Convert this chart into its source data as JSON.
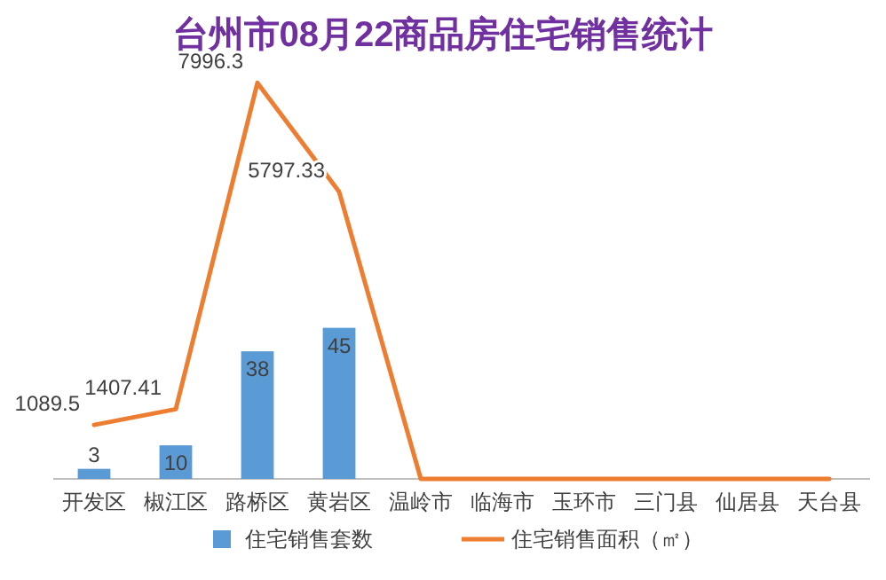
{
  "chart_data": {
    "type": "bar",
    "title": "台州市08月22商品房住宅销售统计",
    "categories": [
      "开发区",
      "椒江区",
      "路桥区",
      "黄岩区",
      "温岭市",
      "临海市",
      "玉环市",
      "三门县",
      "仙居县",
      "天台县"
    ],
    "series": [
      {
        "name": "住宅销售套数",
        "color": "#5b9bd5",
        "values": [
          3,
          10,
          38,
          45,
          0,
          0,
          0,
          0,
          0,
          0
        ],
        "value_labels": [
          "3",
          "10",
          "38",
          "45",
          null,
          null,
          null,
          null,
          null,
          null
        ]
      },
      {
        "name": "住宅销售面积（㎡）",
        "type": "line",
        "axis": "y2",
        "color": "#ed7d31",
        "values": [
          1089.5,
          1407.41,
          7996.3,
          5797.33,
          0,
          0,
          0,
          0,
          0,
          0
        ],
        "value_labels": [
          "1089.5",
          "1407.41",
          "7996.3",
          "5797.33",
          null,
          null,
          null,
          null,
          null,
          null
        ]
      }
    ],
    "legend": "bottom",
    "grid": false
  }
}
